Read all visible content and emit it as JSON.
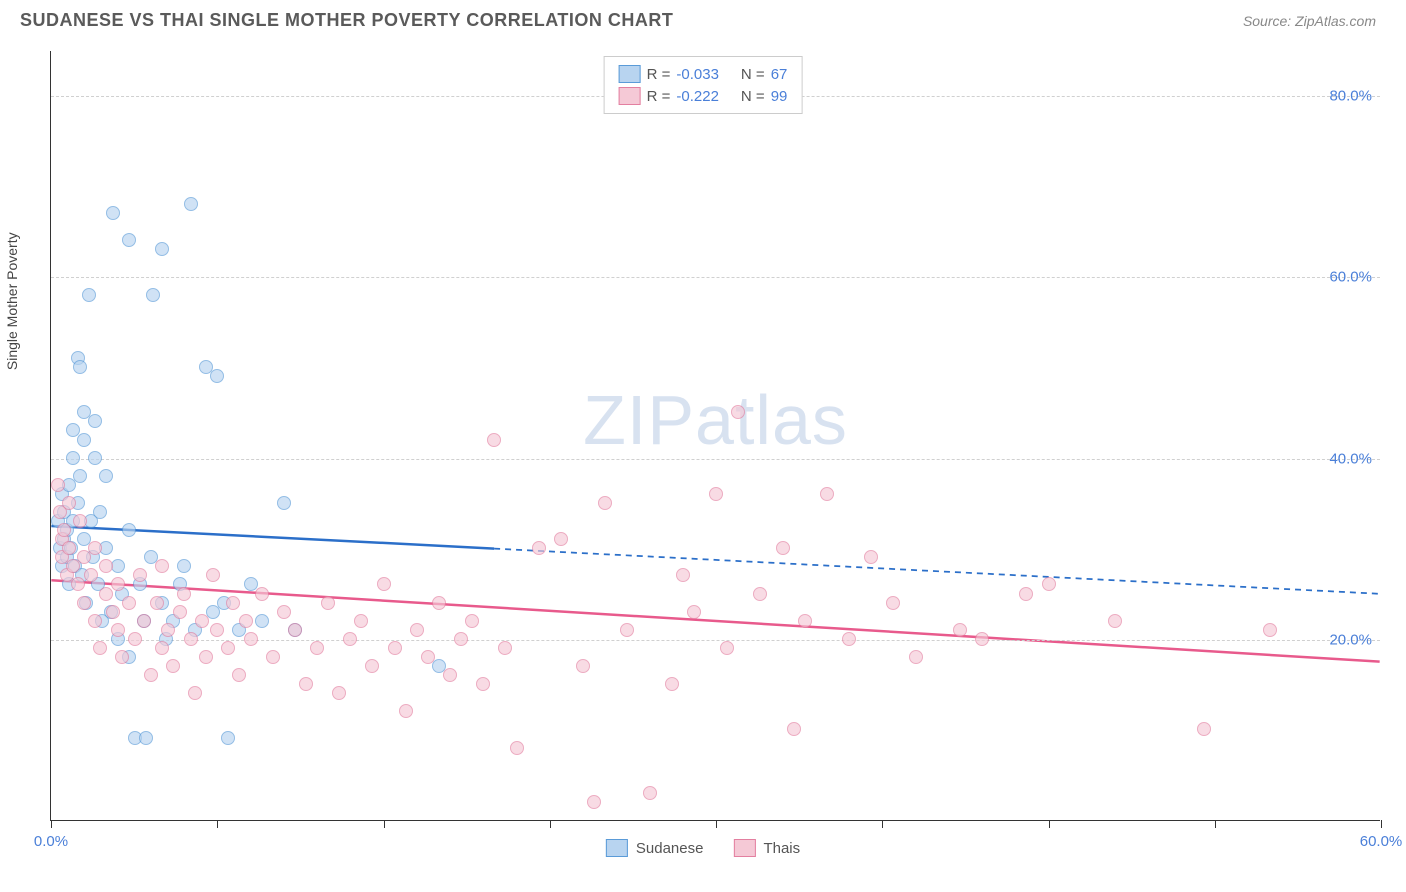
{
  "title": "SUDANESE VS THAI SINGLE MOTHER POVERTY CORRELATION CHART",
  "source_label": "Source: ZipAtlas.com",
  "ylabel": "Single Mother Poverty",
  "watermark": {
    "part1": "ZIP",
    "part2": "atlas"
  },
  "chart": {
    "type": "scatter",
    "background_color": "#ffffff",
    "grid_color": "#d0d0d0",
    "axis_color": "#333333",
    "xlim": [
      0,
      60
    ],
    "ylim": [
      0,
      85
    ],
    "xtick_positions": [
      0,
      7.5,
      15,
      22.5,
      30,
      37.5,
      45,
      52.5,
      60
    ],
    "xtick_labels": {
      "0": "0.0%",
      "60": "60.0%"
    },
    "ytick_positions": [
      20,
      40,
      60,
      80
    ],
    "ytick_labels": [
      "20.0%",
      "40.0%",
      "60.0%",
      "80.0%"
    ],
    "tick_label_color": "#4a7fd8",
    "tick_label_fontsize": 15,
    "point_radius": 7,
    "series": [
      {
        "name": "Sudanese",
        "fill_color": "#b8d4f0",
        "stroke_color": "#5a9bd8",
        "fill_opacity": 0.65,
        "r_value": "-0.033",
        "n_value": "67",
        "trend": {
          "x1": 0,
          "y1": 32.5,
          "x2": 20,
          "y2": 30.0,
          "x2d": 60,
          "y2d": 25.0,
          "color": "#2b6fc9",
          "width": 2.5
        },
        "points": [
          [
            0.3,
            33
          ],
          [
            0.4,
            30
          ],
          [
            0.5,
            36
          ],
          [
            0.5,
            28
          ],
          [
            0.6,
            34
          ],
          [
            0.6,
            31
          ],
          [
            0.7,
            29
          ],
          [
            0.7,
            32
          ],
          [
            0.8,
            37
          ],
          [
            0.8,
            26
          ],
          [
            0.9,
            30
          ],
          [
            1.0,
            33
          ],
          [
            1.0,
            43
          ],
          [
            1.0,
            40
          ],
          [
            1.1,
            28
          ],
          [
            1.2,
            35
          ],
          [
            1.2,
            51
          ],
          [
            1.3,
            38
          ],
          [
            1.3,
            50
          ],
          [
            1.4,
            27
          ],
          [
            1.5,
            31
          ],
          [
            1.5,
            42
          ],
          [
            1.5,
            45
          ],
          [
            1.6,
            24
          ],
          [
            1.7,
            58
          ],
          [
            1.8,
            33
          ],
          [
            1.9,
            29
          ],
          [
            2.0,
            40
          ],
          [
            2.0,
            44
          ],
          [
            2.1,
            26
          ],
          [
            2.2,
            34
          ],
          [
            2.3,
            22
          ],
          [
            2.5,
            38
          ],
          [
            2.5,
            30
          ],
          [
            2.7,
            23
          ],
          [
            2.8,
            67
          ],
          [
            3.0,
            28
          ],
          [
            3.0,
            20
          ],
          [
            3.2,
            25
          ],
          [
            3.5,
            18
          ],
          [
            3.5,
            64
          ],
          [
            3.5,
            32
          ],
          [
            3.8,
            9
          ],
          [
            4.0,
            26
          ],
          [
            4.2,
            22
          ],
          [
            4.3,
            9
          ],
          [
            4.5,
            29
          ],
          [
            4.6,
            58
          ],
          [
            5.0,
            24
          ],
          [
            5.0,
            63
          ],
          [
            5.2,
            20
          ],
          [
            5.5,
            22
          ],
          [
            5.8,
            26
          ],
          [
            6.0,
            28
          ],
          [
            6.3,
            68
          ],
          [
            6.5,
            21
          ],
          [
            7.0,
            50
          ],
          [
            7.3,
            23
          ],
          [
            7.5,
            49
          ],
          [
            7.8,
            24
          ],
          [
            8.0,
            9
          ],
          [
            8.5,
            21
          ],
          [
            9.0,
            26
          ],
          [
            9.5,
            22
          ],
          [
            10.5,
            35
          ],
          [
            11.0,
            21
          ],
          [
            17.5,
            17
          ]
        ]
      },
      {
        "name": "Thais",
        "fill_color": "#f5c9d6",
        "stroke_color": "#e37fa0",
        "fill_opacity": 0.65,
        "r_value": "-0.222",
        "n_value": "99",
        "trend": {
          "x1": 0,
          "y1": 26.5,
          "x2": 60,
          "y2": 17.5,
          "color": "#e85a8c",
          "width": 2.5
        },
        "points": [
          [
            0.3,
            37
          ],
          [
            0.4,
            34
          ],
          [
            0.5,
            31
          ],
          [
            0.5,
            29
          ],
          [
            0.6,
            32
          ],
          [
            0.7,
            27
          ],
          [
            0.8,
            35
          ],
          [
            0.8,
            30
          ],
          [
            1.0,
            28
          ],
          [
            1.2,
            26
          ],
          [
            1.3,
            33
          ],
          [
            1.5,
            24
          ],
          [
            1.5,
            29
          ],
          [
            1.8,
            27
          ],
          [
            2.0,
            22
          ],
          [
            2.0,
            30
          ],
          [
            2.2,
            19
          ],
          [
            2.5,
            25
          ],
          [
            2.5,
            28
          ],
          [
            2.8,
            23
          ],
          [
            3.0,
            21
          ],
          [
            3.0,
            26
          ],
          [
            3.2,
            18
          ],
          [
            3.5,
            24
          ],
          [
            3.8,
            20
          ],
          [
            4.0,
            27
          ],
          [
            4.2,
            22
          ],
          [
            4.5,
            16
          ],
          [
            4.8,
            24
          ],
          [
            5.0,
            19
          ],
          [
            5.0,
            28
          ],
          [
            5.3,
            21
          ],
          [
            5.5,
            17
          ],
          [
            5.8,
            23
          ],
          [
            6.0,
            25
          ],
          [
            6.3,
            20
          ],
          [
            6.5,
            14
          ],
          [
            6.8,
            22
          ],
          [
            7.0,
            18
          ],
          [
            7.3,
            27
          ],
          [
            7.5,
            21
          ],
          [
            8.0,
            19
          ],
          [
            8.2,
            24
          ],
          [
            8.5,
            16
          ],
          [
            8.8,
            22
          ],
          [
            9.0,
            20
          ],
          [
            9.5,
            25
          ],
          [
            10.0,
            18
          ],
          [
            10.5,
            23
          ],
          [
            11.0,
            21
          ],
          [
            11.5,
            15
          ],
          [
            12.0,
            19
          ],
          [
            12.5,
            24
          ],
          [
            13.0,
            14
          ],
          [
            13.5,
            20
          ],
          [
            14.0,
            22
          ],
          [
            14.5,
            17
          ],
          [
            15.0,
            26
          ],
          [
            15.5,
            19
          ],
          [
            16.0,
            12
          ],
          [
            16.5,
            21
          ],
          [
            17.0,
            18
          ],
          [
            17.5,
            24
          ],
          [
            18.0,
            16
          ],
          [
            18.5,
            20
          ],
          [
            19.0,
            22
          ],
          [
            19.5,
            15
          ],
          [
            20.0,
            42
          ],
          [
            20.5,
            19
          ],
          [
            21.0,
            8
          ],
          [
            22.0,
            30
          ],
          [
            23.0,
            31
          ],
          [
            24.0,
            17
          ],
          [
            24.5,
            2
          ],
          [
            25.0,
            35
          ],
          [
            26.0,
            21
          ],
          [
            27.0,
            3
          ],
          [
            28.0,
            15
          ],
          [
            28.5,
            27
          ],
          [
            29.0,
            23
          ],
          [
            30.0,
            36
          ],
          [
            30.5,
            19
          ],
          [
            31.0,
            45
          ],
          [
            32.0,
            25
          ],
          [
            33.0,
            30
          ],
          [
            33.5,
            10
          ],
          [
            34.0,
            22
          ],
          [
            35.0,
            36
          ],
          [
            36.0,
            20
          ],
          [
            37.0,
            29
          ],
          [
            38.0,
            24
          ],
          [
            39.0,
            18
          ],
          [
            41.0,
            21
          ],
          [
            42.0,
            20
          ],
          [
            44.0,
            25
          ],
          [
            45.0,
            26
          ],
          [
            48.0,
            22
          ],
          [
            52.0,
            10
          ],
          [
            55.0,
            21
          ]
        ]
      }
    ]
  },
  "legend_top": {
    "r_label": "R =",
    "n_label": "N ="
  },
  "legend_bottom": [
    {
      "label": "Sudanese",
      "swatch_fill": "#b8d4f0",
      "swatch_border": "#5a9bd8"
    },
    {
      "label": "Thais",
      "swatch_fill": "#f5c9d6",
      "swatch_border": "#e37fa0"
    }
  ]
}
